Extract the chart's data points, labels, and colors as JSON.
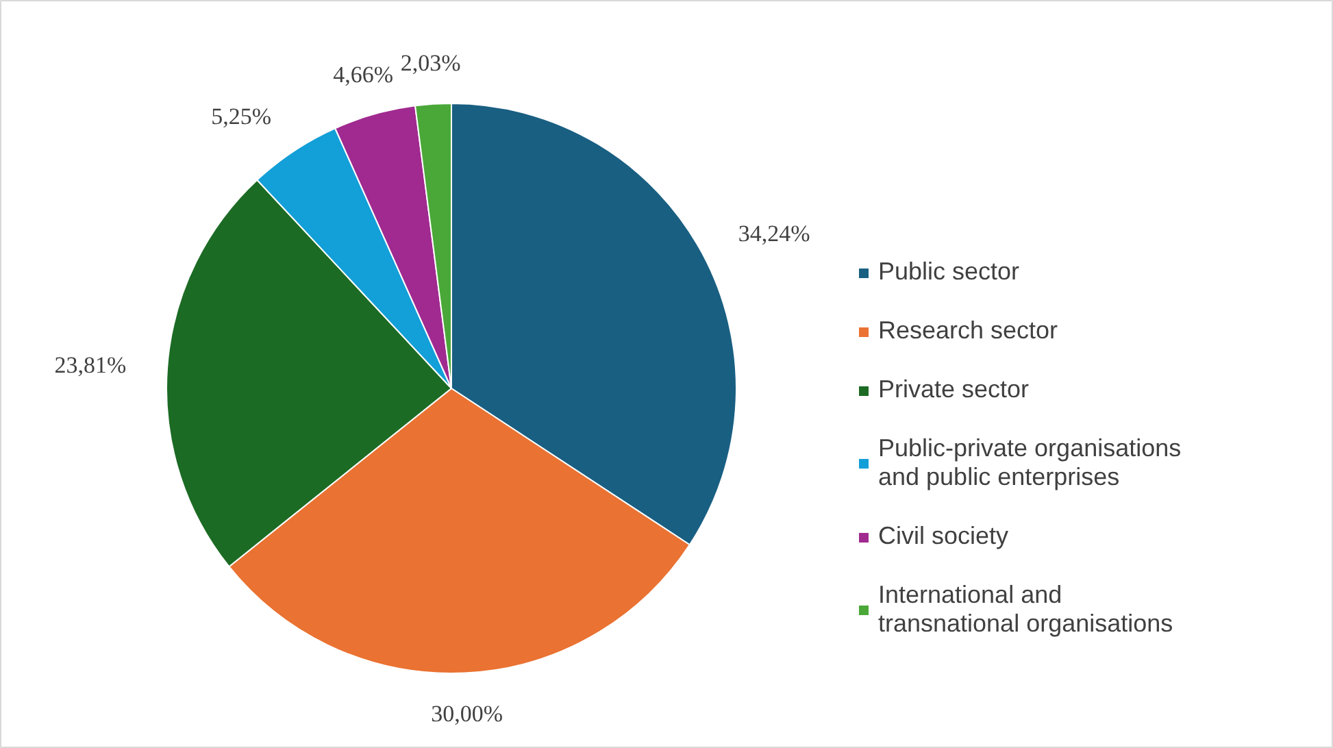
{
  "chart_data": {
    "type": "pie",
    "categories": [
      "Public sector",
      "Research sector",
      "Private sector",
      "Public-private organisations and public enterprises",
      "Civil society",
      "International and transnational organisations"
    ],
    "values": [
      34.24,
      30.0,
      23.81,
      5.25,
      4.66,
      2.03
    ],
    "value_labels": [
      "34,24%",
      "30,00%",
      "23,81%",
      "5,25%",
      "4,66%",
      "2,03%"
    ],
    "colors": [
      "#195f82",
      "#ea7232",
      "#1c6b24",
      "#139fd8",
      "#a02a8f",
      "#4aa838"
    ],
    "legend": "right"
  }
}
